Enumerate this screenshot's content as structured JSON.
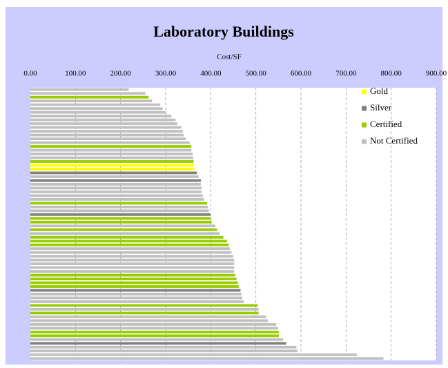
{
  "chart_data": {
    "type": "bar",
    "orientation": "horizontal",
    "title": "Laboratory Buildings",
    "subtitle": "Cost/SF",
    "xlim": [
      0,
      900
    ],
    "xticks": [
      {
        "value": 0,
        "label": "0.00"
      },
      {
        "value": 100,
        "label": "100.00"
      },
      {
        "value": 200,
        "label": "200.00"
      },
      {
        "value": 300,
        "label": "300.00"
      },
      {
        "value": 400,
        "label": "400.00"
      },
      {
        "value": 500,
        "label": "500.00"
      },
      {
        "value": 600,
        "label": "600.00"
      },
      {
        "value": 700,
        "label": "700.00"
      },
      {
        "value": 800,
        "label": "800.00"
      },
      {
        "value": 900,
        "label": "900.00"
      }
    ],
    "grid": true,
    "legend": "upper right",
    "series": [
      {
        "name": "Gold",
        "color": "#ffff00"
      },
      {
        "name": "Silver",
        "color": "#808080"
      },
      {
        "name": "Certified",
        "color": "#99cc00"
      },
      {
        "name": "Not Certified",
        "color": "#c0c0c0"
      }
    ],
    "values": [
      218,
      255,
      262,
      270,
      288,
      293,
      300,
      313,
      322,
      326,
      335,
      338,
      340,
      345,
      353,
      357,
      357,
      360,
      361,
      362,
      363,
      364,
      369,
      373,
      378,
      378,
      380,
      380,
      382,
      385,
      392,
      394,
      396,
      399,
      400,
      402,
      410,
      414,
      420,
      428,
      436,
      440,
      442,
      446,
      450,
      452,
      452,
      452,
      452,
      454,
      457,
      460,
      462,
      466,
      468,
      470,
      473,
      504,
      506,
      506,
      523,
      527,
      545,
      549,
      551,
      551,
      560,
      567,
      590,
      592,
      724,
      783
    ],
    "groups": [
      3,
      3,
      2,
      3,
      3,
      3,
      3,
      3,
      3,
      3,
      3,
      3,
      3,
      3,
      3,
      2,
      3,
      3,
      3,
      2,
      0,
      0,
      1,
      3,
      1,
      3,
      3,
      3,
      3,
      3,
      2,
      3,
      3,
      1,
      2,
      2,
      3,
      2,
      3,
      2,
      2,
      2,
      3,
      3,
      3,
      3,
      3,
      3,
      3,
      2,
      2,
      2,
      2,
      1,
      3,
      3,
      3,
      2,
      3,
      2,
      3,
      3,
      3,
      3,
      2,
      2,
      3,
      1,
      3,
      3,
      3,
      3
    ]
  }
}
